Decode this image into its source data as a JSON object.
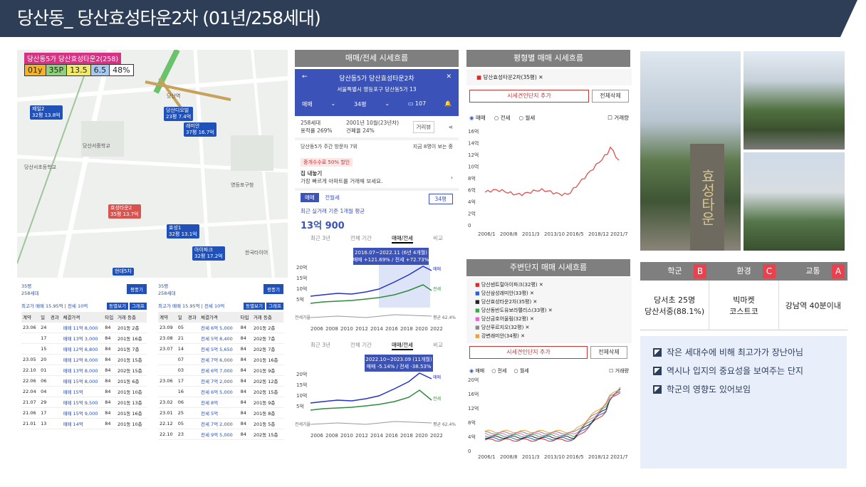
{
  "title": "당산동_ 당산효성타운2차 (01년/258세대)",
  "map": {
    "title": "당산동5가 당산효성타운2(258)",
    "stats": [
      "01y",
      "35P",
      "13.5",
      "6.5",
      "48%"
    ],
    "labels": [
      {
        "t": "제일2",
        "s": "32평 13.8억"
      },
      {
        "t": "당산디오빌",
        "s": "23평 7.4억"
      },
      {
        "t": "래미안",
        "s": "37평 16.7억"
      },
      {
        "t": "효성타운2",
        "s": "35평 13.7억"
      },
      {
        "t": "효성1",
        "s": "32평 13.1억"
      },
      {
        "t": "아이파크",
        "s": "32평 17.2억"
      },
      {
        "t": "현대5차",
        "s": ""
      }
    ],
    "places": [
      "당산서중학교",
      "당산서초등학교",
      "당산역",
      "영등포구청",
      "한국타이어"
    ]
  },
  "left_tables": [
    {
      "head": "35평\n258세대",
      "btn": "평풍기",
      "summary": "최고가 매매 15.95억 | 전세 10억",
      "tabs": [
        "동별보기",
        "그래프"
      ],
      "cols": [
        "계약",
        "일",
        "경과",
        "체결가격",
        "타입",
        "거래 동층"
      ],
      "rows": [
        [
          "23.06",
          "24",
          "",
          "매매 11억 8,000",
          "84",
          "201동 2층"
        ],
        [
          "",
          "17",
          "",
          "매매 13억 3,000",
          "84",
          "201동 16층"
        ],
        [
          "",
          "15",
          "",
          "매매 12억 8,800",
          "84",
          "201동 7층"
        ],
        [
          "23.05",
          "20",
          "",
          "매매 12억 8,000",
          "84",
          "201동 15층"
        ],
        [
          "22.10",
          "01",
          "",
          "매매 13억 8,000",
          "84",
          "202동 15층"
        ],
        [
          "22.06",
          "06",
          "",
          "매매 15억 8,000",
          "84",
          "201동 6층"
        ],
        [
          "22.04",
          "04",
          "",
          "매매 15억",
          "84",
          "201동 10층"
        ],
        [
          "21.07",
          "29",
          "",
          "매매 15억 9,500",
          "84",
          "201동 13층"
        ],
        [
          "21.06",
          "17",
          "",
          "매매 15억 9,000",
          "84",
          "201동 16층"
        ],
        [
          "21.01",
          "13",
          "",
          "매매 14억",
          "84",
          "201동 10층"
        ]
      ]
    },
    {
      "head": "35평\n258세대",
      "btn": "평풍기",
      "summary": "최고가 매매 15.95억 | 전세 10억",
      "tabs": [
        "동별보기",
        "그래프"
      ],
      "cols": [
        "계약",
        "일",
        "경과",
        "체결가격",
        "타입",
        "거래 동층"
      ],
      "rows": [
        [
          "23.09",
          "05",
          "",
          "전세 6억 5,000",
          "84",
          "201동 2층"
        ],
        [
          "23.08",
          "21",
          "",
          "전세 5억 8,400",
          "84",
          "202동 7층"
        ],
        [
          "23.07",
          "14",
          "",
          "전세 5억 5,650",
          "84",
          "202동 7층"
        ],
        [
          "",
          "07",
          "",
          "전세 7억 6,000",
          "84",
          "201동 16층"
        ],
        [
          "",
          "03",
          "",
          "전세 6억 7,000",
          "84",
          "201동 9층"
        ],
        [
          "23.06",
          "17",
          "",
          "전세 7억 2,000",
          "84",
          "202동 12층"
        ],
        [
          "",
          "16",
          "",
          "전세 6억 5,000",
          "84",
          "202동 15층"
        ],
        [
          "23.02",
          "06",
          "",
          "전세 8억",
          "84",
          "201동 9층"
        ],
        [
          "23.01",
          "25",
          "",
          "전세 5억",
          "84",
          "201동 8층"
        ],
        [
          "22.12",
          "05",
          "",
          "전세 7억 2,000",
          "84",
          "201동 5층"
        ],
        [
          "22.10",
          "23",
          "",
          "전세 9억 5,000",
          "84",
          "202동 15층"
        ]
      ]
    }
  ],
  "phone": {
    "header": "매매/전세 시세흐름",
    "title": "당산동5가 당산효성타운2차",
    "address": "서울특별시 영등포구 당산동5가 13",
    "deal": "매매",
    "size": "34평",
    "count": "107",
    "info1": "258세대",
    "info2": "용적률 269%",
    "info3": "2001년 10월(23년차)",
    "info4": "건폐율 24%",
    "street": "거리뷰",
    "visit": "당산동5가 주간 방문자 7위",
    "visit_r": "지금 8명이 보는 중",
    "promo": "중개수수료 50% 할인",
    "sell": "집 내놓기",
    "sell_sub": "가장 빠르게 아파트를 거래해 보세요.",
    "tab_a": "매매",
    "tab_b": "전월세",
    "size2": "34평",
    "recent": "최근 실거래 기준 1개월 평균",
    "price": "13억 900",
    "ctabs": [
      "최근 3년",
      "전체 기간",
      "매매/전세",
      "비교"
    ],
    "box1": "2016.07~2022.11 (6년 4개월)",
    "box1b": "매매 +121.69% / 전세 +72.73%",
    "box2": "2022.10~2023.09 (11개월)",
    "box2b": "매매 -5.14% / 전세 -38.53%",
    "legend": [
      "매매",
      "전세",
      "전세가율",
      "평균 62.4%"
    ],
    "years": [
      "2006",
      "2008",
      "2010",
      "2012",
      "2014",
      "2016",
      "2018",
      "2020",
      "2022"
    ],
    "yt": [
      "20억",
      "15억",
      "10억",
      "5억"
    ]
  },
  "chart1": {
    "header": "평형별 매매 시세흐름",
    "item": "당산효성타운2차(35평)",
    "add": "시세견인단지 추가",
    "clear": "전체삭제",
    "opts": [
      "매매",
      "전세",
      "월세"
    ],
    "chk": "거래량",
    "yt": [
      "16억",
      "14억",
      "12억",
      "10억",
      "8억",
      "6억",
      "4억",
      "2억",
      "0"
    ],
    "xt": [
      "2006/1",
      "2008/8",
      "2011/3",
      "2013/10",
      "2016/5",
      "2018/12",
      "2021/7"
    ]
  },
  "chart2": {
    "header": "주변단지 매매 시세흐름",
    "items": [
      {
        "n": "당산센트럴아이파크(32평)",
        "c": "#d92b2b"
      },
      {
        "n": "당산삼성래미안(33평)",
        "c": "#2a5fd6"
      },
      {
        "n": "당산효성타운2차(35평)",
        "c": "#222222"
      },
      {
        "n": "당산동반도유보라팰리스(33평)",
        "c": "#3aa84a"
      },
      {
        "n": "당산금호어울림(32평)",
        "c": "#e06ad0"
      },
      {
        "n": "당산푸르지오(32평)",
        "c": "#888888"
      },
      {
        "n": "강변래미안(34평)",
        "c": "#e8a33a"
      }
    ],
    "add": "시세견인단지 추가",
    "clear": "전체삭제",
    "opts": [
      "매매",
      "전세",
      "월세"
    ],
    "chk": "거래량",
    "yt": [
      "20억",
      "16억",
      "12억",
      "8억",
      "4억",
      "0"
    ],
    "xt": [
      "2006/1",
      "2008/8",
      "2011/3",
      "2013/10",
      "2016/5",
      "2018/12",
      "2021/7"
    ]
  },
  "stats": {
    "cols": [
      {
        "h": "학군",
        "tag": "B",
        "v": [
          "당서초 25명",
          "당산서중(88.1%)"
        ]
      },
      {
        "h": "환경",
        "tag": "C",
        "v": [
          "빅마켓",
          "코스트코"
        ]
      },
      {
        "h": "교통",
        "tag": "A",
        "v": [
          "강남역 40분이내"
        ]
      }
    ]
  },
  "notes": [
    "작은 세대수에 비해 최고가가 장난아님",
    "역시나 입지의 중요성을 보여주는 단지",
    "학군의 영향도 있어보임"
  ],
  "photo_sign": "효성타운"
}
